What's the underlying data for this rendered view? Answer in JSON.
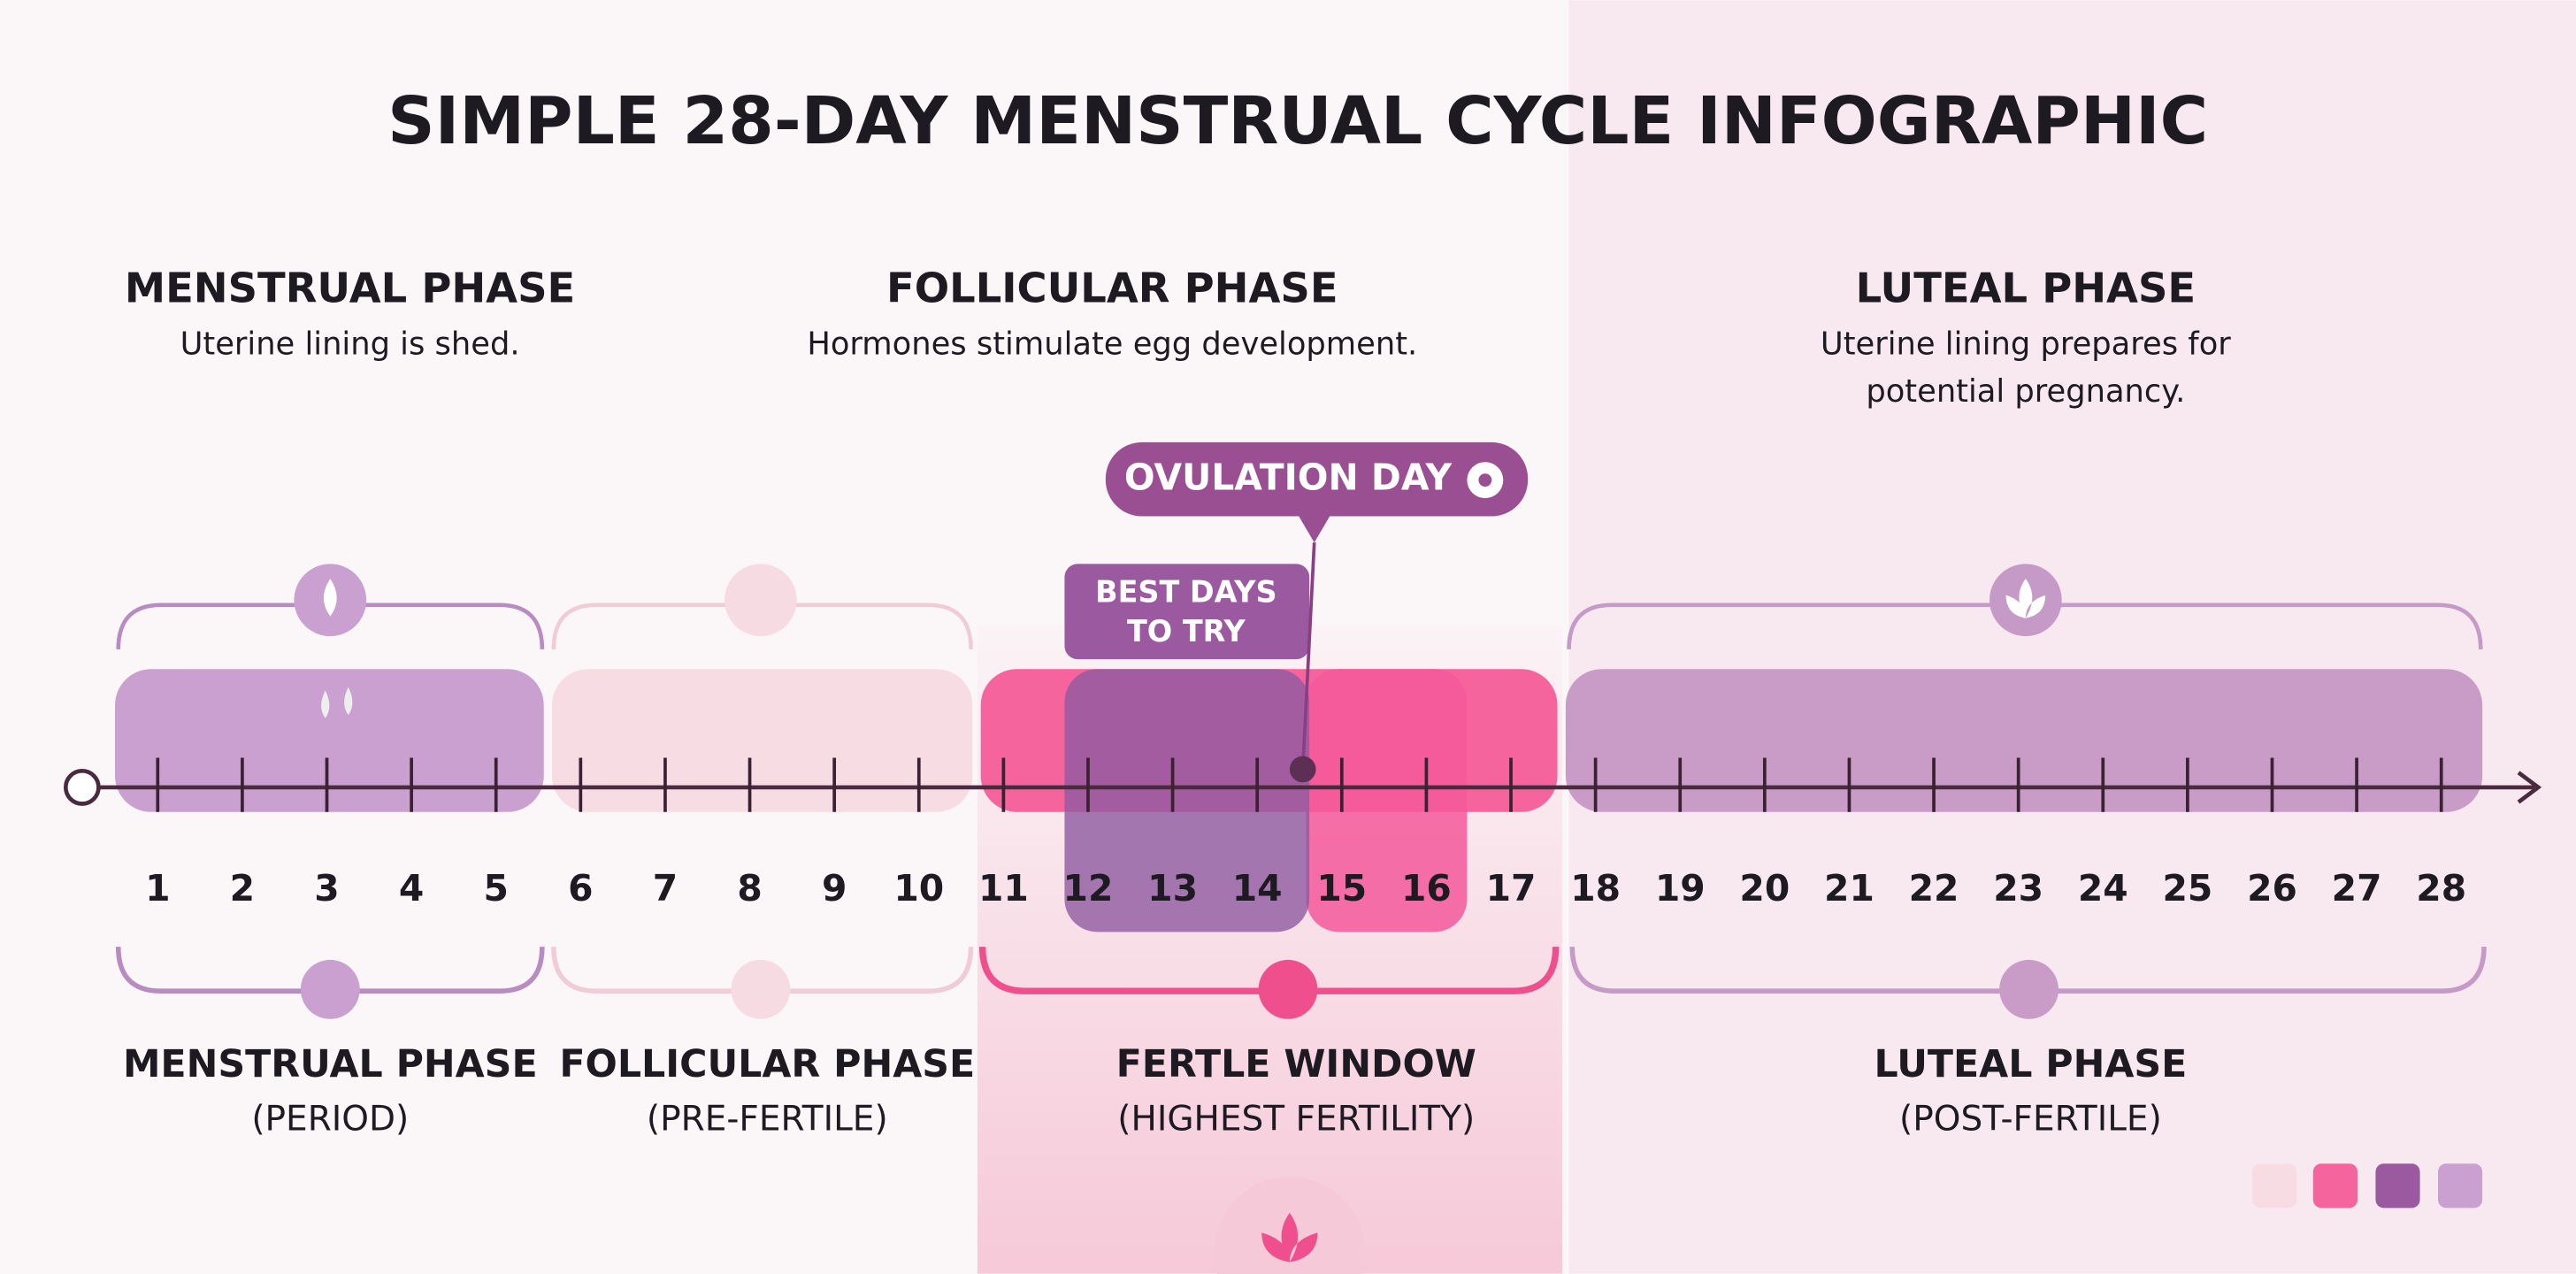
{
  "title": "SIMPLE 28-DAY MENSTRUAL CYCLE INFOGRAPHIC",
  "top_phases": [
    {
      "title": "MENSTRUAL PHASE",
      "description": [
        "Uterine lining is shed."
      ]
    },
    {
      "title": "FOLLICULAR PHASE",
      "description": [
        "Hormones stimulate egg development."
      ]
    },
    {
      "title": "LUTEAL PHASE",
      "description": [
        "Uterine lining prepares for",
        "potential pregnancy."
      ]
    }
  ],
  "ovulation_label": "OVULATION DAY",
  "best_days_label": [
    "BEST DAYS",
    "TO TRY"
  ],
  "days": [
    1,
    2,
    3,
    4,
    5,
    6,
    7,
    8,
    9,
    10,
    11,
    12,
    13,
    14,
    15,
    16,
    17,
    18,
    19,
    20,
    21,
    22,
    23,
    24,
    25,
    26,
    27,
    28
  ],
  "bottom_phases": [
    {
      "title": "MENSTRUAL PHASE",
      "subtitle": "(PERIOD)"
    },
    {
      "title": "FOLLICULAR PHASE",
      "subtitle": "(PRE-FERTILE)"
    },
    {
      "title": "FERTLE WINDOW",
      "subtitle": "(HIGHEST FERTILITY)"
    },
    {
      "title": "LUTEAL PHASE",
      "subtitle": "(POST-FERTILE)"
    }
  ]
}
